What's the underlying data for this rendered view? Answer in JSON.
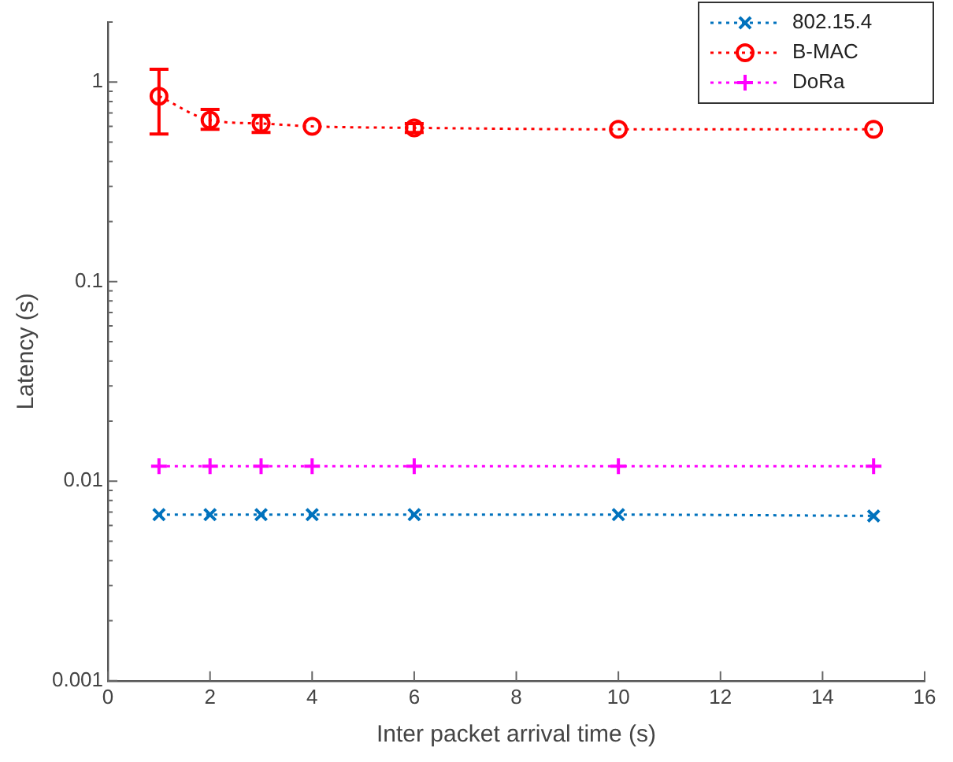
{
  "chart_data": {
    "type": "line",
    "xlabel": "Inter packet arrival time (s)",
    "ylabel": "Latency (s)",
    "x": [
      1,
      2,
      3,
      4,
      6,
      10,
      15
    ],
    "xlim": [
      0,
      16
    ],
    "xticks": [
      0,
      2,
      4,
      6,
      8,
      10,
      12,
      14,
      16
    ],
    "ylim": [
      0.001,
      2
    ],
    "yticks": [
      0.001,
      0.01,
      0.1,
      1
    ],
    "log": "y",
    "grid": false,
    "legend": "top right",
    "line_style": "dotted",
    "series": [
      {
        "name": "802.15.4",
        "color": "#0072bd",
        "marker": "cross",
        "values": [
          0.0068,
          0.0068,
          0.0068,
          0.0068,
          0.0068,
          0.0068,
          0.0067
        ]
      },
      {
        "name": "B-MAC",
        "color": "#ff0000",
        "marker": "circle",
        "values": [
          0.85,
          0.645,
          0.62,
          0.6,
          0.59,
          0.58,
          0.58
        ],
        "errors": [
          [
            0.55,
            1.16
          ],
          [
            0.58,
            0.73
          ],
          [
            0.56,
            0.68
          ],
          null,
          [
            0.56,
            0.62
          ],
          null,
          null
        ]
      },
      {
        "name": "DoRa",
        "color": "#ff00ff",
        "marker": "plus",
        "values": [
          0.0119,
          0.0119,
          0.0119,
          0.0119,
          0.0119,
          0.0119,
          0.0119
        ]
      }
    ]
  }
}
